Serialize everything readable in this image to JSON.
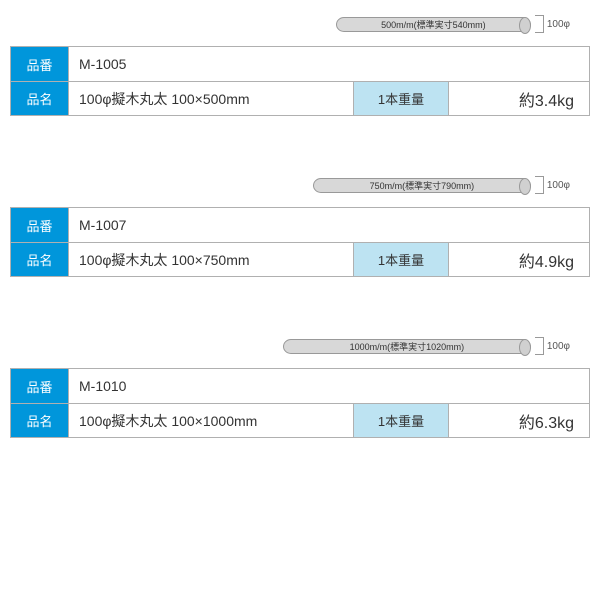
{
  "labels": {
    "part_number": "品番",
    "part_name": "品名",
    "weight": "1本重量",
    "diameter": "100φ"
  },
  "colors": {
    "header_bg": "#0096db",
    "header_text": "#ffffff",
    "weight_bg": "#bde3f2",
    "border": "#b0b0b0",
    "cylinder_bg": "#d8d8d8",
    "text": "#333333"
  },
  "products": [
    {
      "part_number": "M-1005",
      "part_name": "100φ擬木丸太 100×500mm",
      "weight": "約3.4kg",
      "diagram_text": "500m/m(標準実寸540mm)",
      "diagram_width": 195
    },
    {
      "part_number": "M-1007",
      "part_name": "100φ擬木丸太 100×750mm",
      "weight": "約4.9kg",
      "diagram_text": "750m/m(標準実寸790mm)",
      "diagram_width": 218
    },
    {
      "part_number": "M-1010",
      "part_name": "100φ擬木丸太 100×1000mm",
      "weight": "約6.3kg",
      "diagram_text": "1000m/m(標準実寸1020mm)",
      "diagram_width": 248
    }
  ]
}
